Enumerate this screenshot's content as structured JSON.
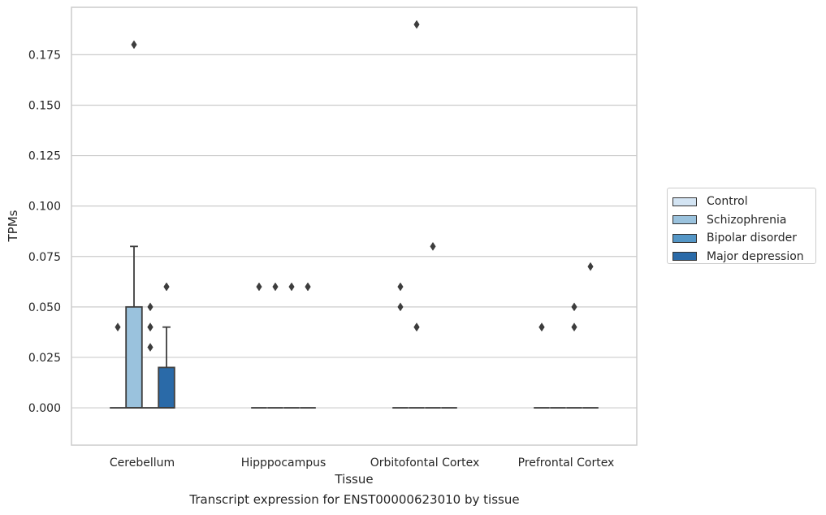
{
  "chart_data": {
    "type": "box",
    "xlabel": "Tissue",
    "ylabel": "TPMs",
    "caption": "Transcript expression for ENST00000623010 by tissue",
    "ylim": [
      -0.0185,
      0.1985
    ],
    "yticks": [
      "0.000",
      "0.025",
      "0.050",
      "0.075",
      "0.100",
      "0.125",
      "0.150",
      "0.175"
    ],
    "ytick_values": [
      0,
      0.025,
      0.05,
      0.075,
      0.1,
      0.125,
      0.15,
      0.175
    ],
    "grid": "horizontal",
    "legend_position": "right",
    "categories": [
      "Cerebellum",
      "Hipppocampus",
      "Orbitofontal Cortex",
      "Prefrontal Cortex"
    ],
    "series": [
      {
        "name": "Control",
        "color": "#d3e4f3",
        "boxes": [
          {
            "q1": 0,
            "median": 0,
            "q3": 0,
            "whisker_low": 0,
            "whisker_high": 0,
            "outliers": [
              0.04
            ]
          },
          {
            "q1": 0,
            "median": 0,
            "q3": 0,
            "whisker_low": 0,
            "whisker_high": 0,
            "outliers": [
              0.06
            ]
          },
          {
            "q1": 0,
            "median": 0,
            "q3": 0,
            "whisker_low": 0,
            "whisker_high": 0,
            "outliers": [
              0.06,
              0.05
            ]
          },
          {
            "q1": 0,
            "median": 0,
            "q3": 0,
            "whisker_low": 0,
            "whisker_high": 0,
            "outliers": [
              0.04,
              0.04
            ]
          }
        ]
      },
      {
        "name": "Schizophrenia",
        "color": "#9ac2dd",
        "boxes": [
          {
            "q1": 0,
            "median": 0,
            "q3": 0.05,
            "whisker_low": 0,
            "whisker_high": 0.08,
            "outliers": [
              0.18
            ]
          },
          {
            "q1": 0,
            "median": 0,
            "q3": 0,
            "whisker_low": 0,
            "whisker_high": 0,
            "outliers": [
              0.06
            ]
          },
          {
            "q1": 0,
            "median": 0,
            "q3": 0,
            "whisker_low": 0,
            "whisker_high": 0,
            "outliers": [
              0.19,
              0.04,
              0.04
            ]
          },
          {
            "q1": 0,
            "median": 0,
            "q3": 0,
            "whisker_low": 0,
            "whisker_high": 0,
            "outliers": []
          }
        ]
      },
      {
        "name": "Bipolar disorder",
        "color": "#5496c6",
        "boxes": [
          {
            "q1": 0,
            "median": 0,
            "q3": 0,
            "whisker_low": 0,
            "whisker_high": 0,
            "outliers": [
              0.05,
              0.04,
              0.04,
              0.03
            ]
          },
          {
            "q1": 0,
            "median": 0,
            "q3": 0,
            "whisker_low": 0,
            "whisker_high": 0,
            "outliers": [
              0.06
            ]
          },
          {
            "q1": 0,
            "median": 0,
            "q3": 0,
            "whisker_low": 0,
            "whisker_high": 0,
            "outliers": [
              0.08
            ]
          },
          {
            "q1": 0,
            "median": 0,
            "q3": 0,
            "whisker_low": 0,
            "whisker_high": 0,
            "outliers": [
              0.05,
              0.04
            ]
          }
        ]
      },
      {
        "name": "Major depression",
        "color": "#2a6aa8",
        "boxes": [
          {
            "q1": 0,
            "median": 0,
            "q3": 0.02,
            "whisker_low": 0,
            "whisker_high": 0.04,
            "outliers": [
              0.06,
              0.06
            ]
          },
          {
            "q1": 0,
            "median": 0,
            "q3": 0,
            "whisker_low": 0,
            "whisker_high": 0,
            "outliers": [
              0.06,
              0.06
            ]
          },
          {
            "q1": 0,
            "median": 0,
            "q3": 0,
            "whisker_low": 0,
            "whisker_high": 0,
            "outliers": []
          },
          {
            "q1": 0,
            "median": 0,
            "q3": 0,
            "whisker_low": 0,
            "whisker_high": 0,
            "outliers": [
              0.07
            ]
          }
        ]
      }
    ]
  }
}
